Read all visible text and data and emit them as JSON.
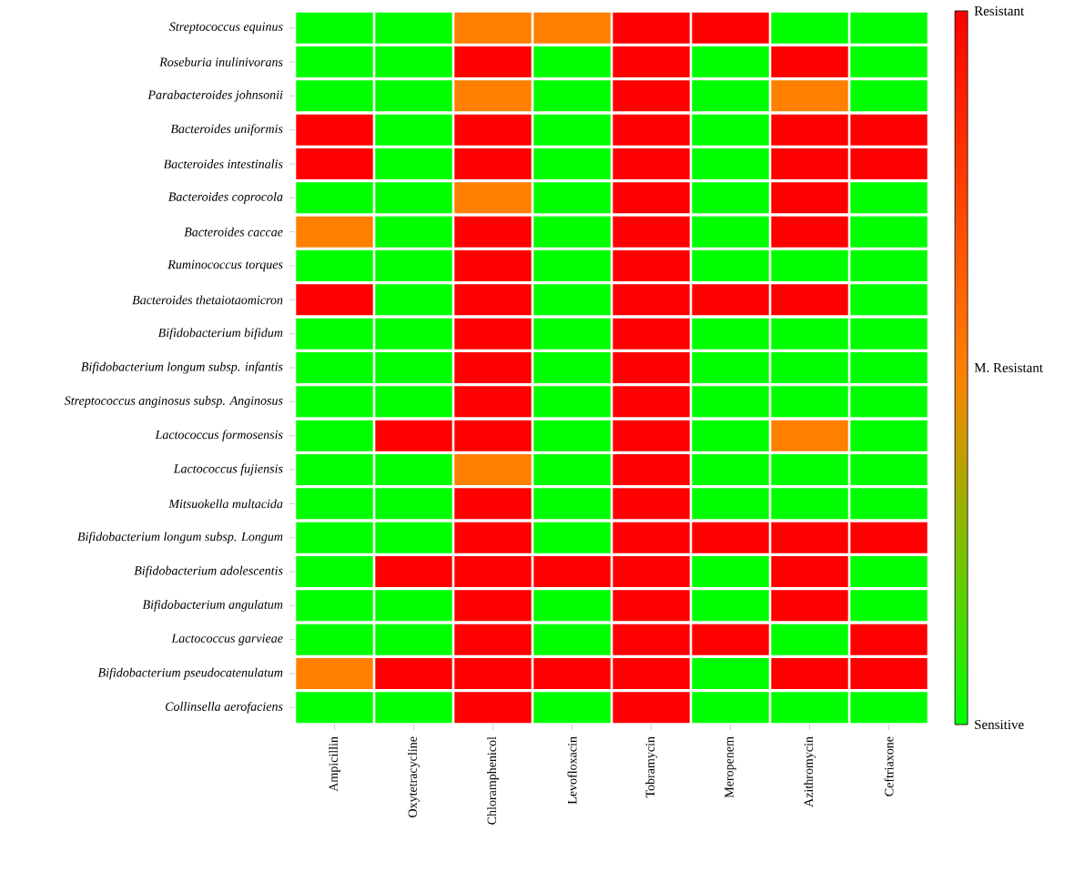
{
  "chart_data": {
    "type": "heatmap",
    "categories": [
      "Ampicillin",
      "Oxytetracycline",
      "Chloramphenicol",
      "Levofloxacin",
      "Tobramycin",
      "Meropenem",
      "Azithromycin",
      "Ceftriaxone"
    ],
    "y_categories": [
      "Streptococcus equinus",
      "Roseburia inulinivorans",
      "Parabacteroides johnsonii",
      "Bacteroides uniformis",
      "Bacteroides intestinalis",
      "Bacteroides coprocola",
      "Bacteroides caccae",
      "Ruminococcus torques",
      "Bacteroides thetaiotaomicron",
      "Bifidobacterium bifidum",
      "Bifidobacterium longum subsp. infantis",
      "Streptococcus anginosus subsp. Anginosus",
      "Lactococcus formosensis",
      "Lactococcus fujiensis",
      "Mitsuokella multacida",
      "Bifidobacterium longum subsp. Longum",
      "Bifidobacterium adolescentis",
      "Bifidobacterium angulatum",
      "Lactococcus garvieae",
      "Bifidobacterium pseudocatenulatum",
      "Collinsella aerofaciens"
    ],
    "cells": [
      [
        0,
        0,
        1,
        1,
        2,
        2,
        0,
        0
      ],
      [
        0,
        0,
        2,
        0,
        2,
        0,
        2,
        0
      ],
      [
        0,
        0,
        1,
        0,
        2,
        0,
        1,
        0
      ],
      [
        2,
        0,
        2,
        0,
        2,
        0,
        2,
        2
      ],
      [
        2,
        0,
        2,
        0,
        2,
        0,
        2,
        2
      ],
      [
        0,
        0,
        1,
        0,
        2,
        0,
        2,
        0
      ],
      [
        1,
        0,
        2,
        0,
        2,
        0,
        2,
        0
      ],
      [
        0,
        0,
        2,
        0,
        2,
        0,
        0,
        0
      ],
      [
        2,
        0,
        2,
        0,
        2,
        2,
        2,
        0
      ],
      [
        0,
        0,
        2,
        0,
        2,
        0,
        0,
        0
      ],
      [
        0,
        0,
        2,
        0,
        2,
        0,
        0,
        0
      ],
      [
        0,
        0,
        2,
        0,
        2,
        0,
        0,
        0
      ],
      [
        0,
        2,
        2,
        0,
        2,
        0,
        1,
        0
      ],
      [
        0,
        0,
        1,
        0,
        2,
        0,
        0,
        0
      ],
      [
        0,
        0,
        2,
        0,
        2,
        0,
        0,
        0
      ],
      [
        0,
        0,
        2,
        0,
        2,
        2,
        2,
        2
      ],
      [
        0,
        2,
        2,
        2,
        2,
        0,
        2,
        0
      ],
      [
        0,
        0,
        2,
        0,
        2,
        0,
        2,
        0
      ],
      [
        0,
        0,
        2,
        0,
        2,
        2,
        0,
        2
      ],
      [
        1,
        2,
        2,
        2,
        2,
        0,
        2,
        2
      ],
      [
        0,
        0,
        2,
        0,
        2,
        0,
        0,
        0
      ]
    ],
    "clim": [
      0,
      2
    ],
    "cticks": [
      {
        "value": 0,
        "label": "Sensitive"
      },
      {
        "value": 1,
        "label": "M. Resistant"
      },
      {
        "value": 2,
        "label": "Resistant"
      }
    ]
  }
}
